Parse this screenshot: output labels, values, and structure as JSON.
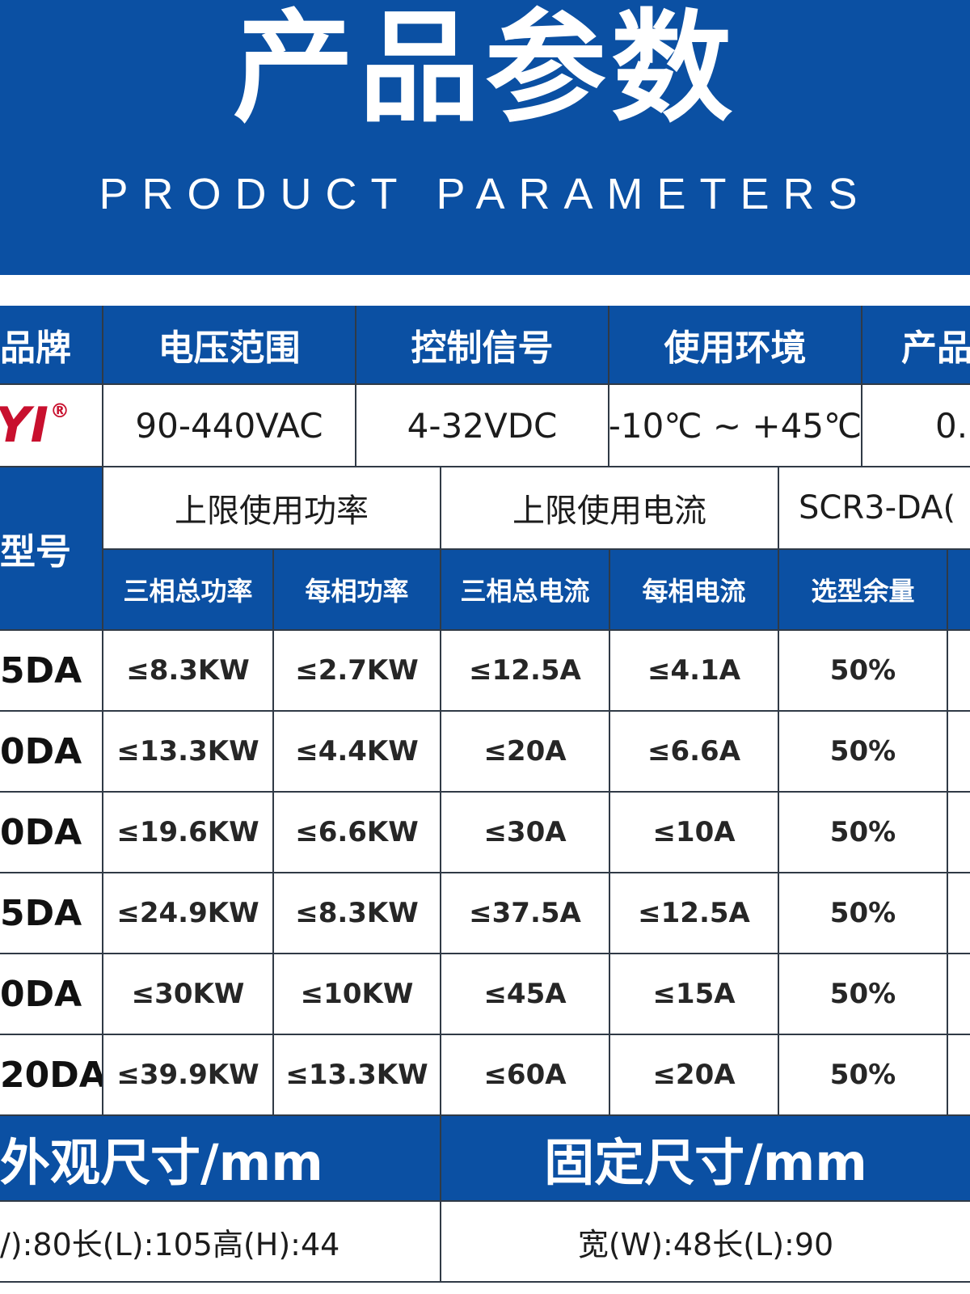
{
  "header": {
    "title": "产品参数",
    "subtitle": "PRODUCT PARAMETERS"
  },
  "spec_table": {
    "headers": [
      "品牌",
      "电压范围",
      "控制信号",
      "使用环境",
      "产品"
    ],
    "row": {
      "brand_logo_text": "YI",
      "brand_reg_mark": "®",
      "voltage": "90-440VAC",
      "control_signal": "4-32VDC",
      "environment": "-10℃ ~ +45℃",
      "product_partial": "0."
    }
  },
  "model_table": {
    "model_header": "型号",
    "group_power": "上限使用功率",
    "group_current": "上限使用电流",
    "group_model": "SCR3-DA(",
    "sub_headers": [
      "三相总功率",
      "每相功率",
      "三相总电流",
      "每相电流",
      "选型余量"
    ],
    "rows": [
      {
        "model": "5DA",
        "total_power": "≤8.3KW",
        "phase_power": "≤2.7KW",
        "total_current": "≤12.5A",
        "phase_current": "≤4.1A",
        "margin": "50%"
      },
      {
        "model": "0DA",
        "total_power": "≤13.3KW",
        "phase_power": "≤4.4KW",
        "total_current": "≤20A",
        "phase_current": "≤6.6A",
        "margin": "50%"
      },
      {
        "model": "0DA",
        "total_power": "≤19.6KW",
        "phase_power": "≤6.6KW",
        "total_current": "≤30A",
        "phase_current": "≤10A",
        "margin": "50%"
      },
      {
        "model": "5DA",
        "total_power": "≤24.9KW",
        "phase_power": "≤8.3KW",
        "total_current": "≤37.5A",
        "phase_current": "≤12.5A",
        "margin": "50%"
      },
      {
        "model": "0DA",
        "total_power": "≤30KW",
        "phase_power": "≤10KW",
        "total_current": "≤45A",
        "phase_current": "≤15A",
        "margin": "50%"
      },
      {
        "model": "20DA",
        "total_power": "≤39.9KW",
        "phase_power": "≤13.3KW",
        "total_current": "≤60A",
        "phase_current": "≤20A",
        "margin": "50%"
      }
    ]
  },
  "dimensions": {
    "outer_header": "外观尺寸/mm",
    "fix_header": "固定尺寸/mm",
    "outer_value": "/):80长(L):105高(H):44",
    "fix_value": "宽(W):48长(L):90"
  },
  "colors": {
    "brand_blue": "#0b50a3",
    "logo_red": "#c8102e"
  }
}
